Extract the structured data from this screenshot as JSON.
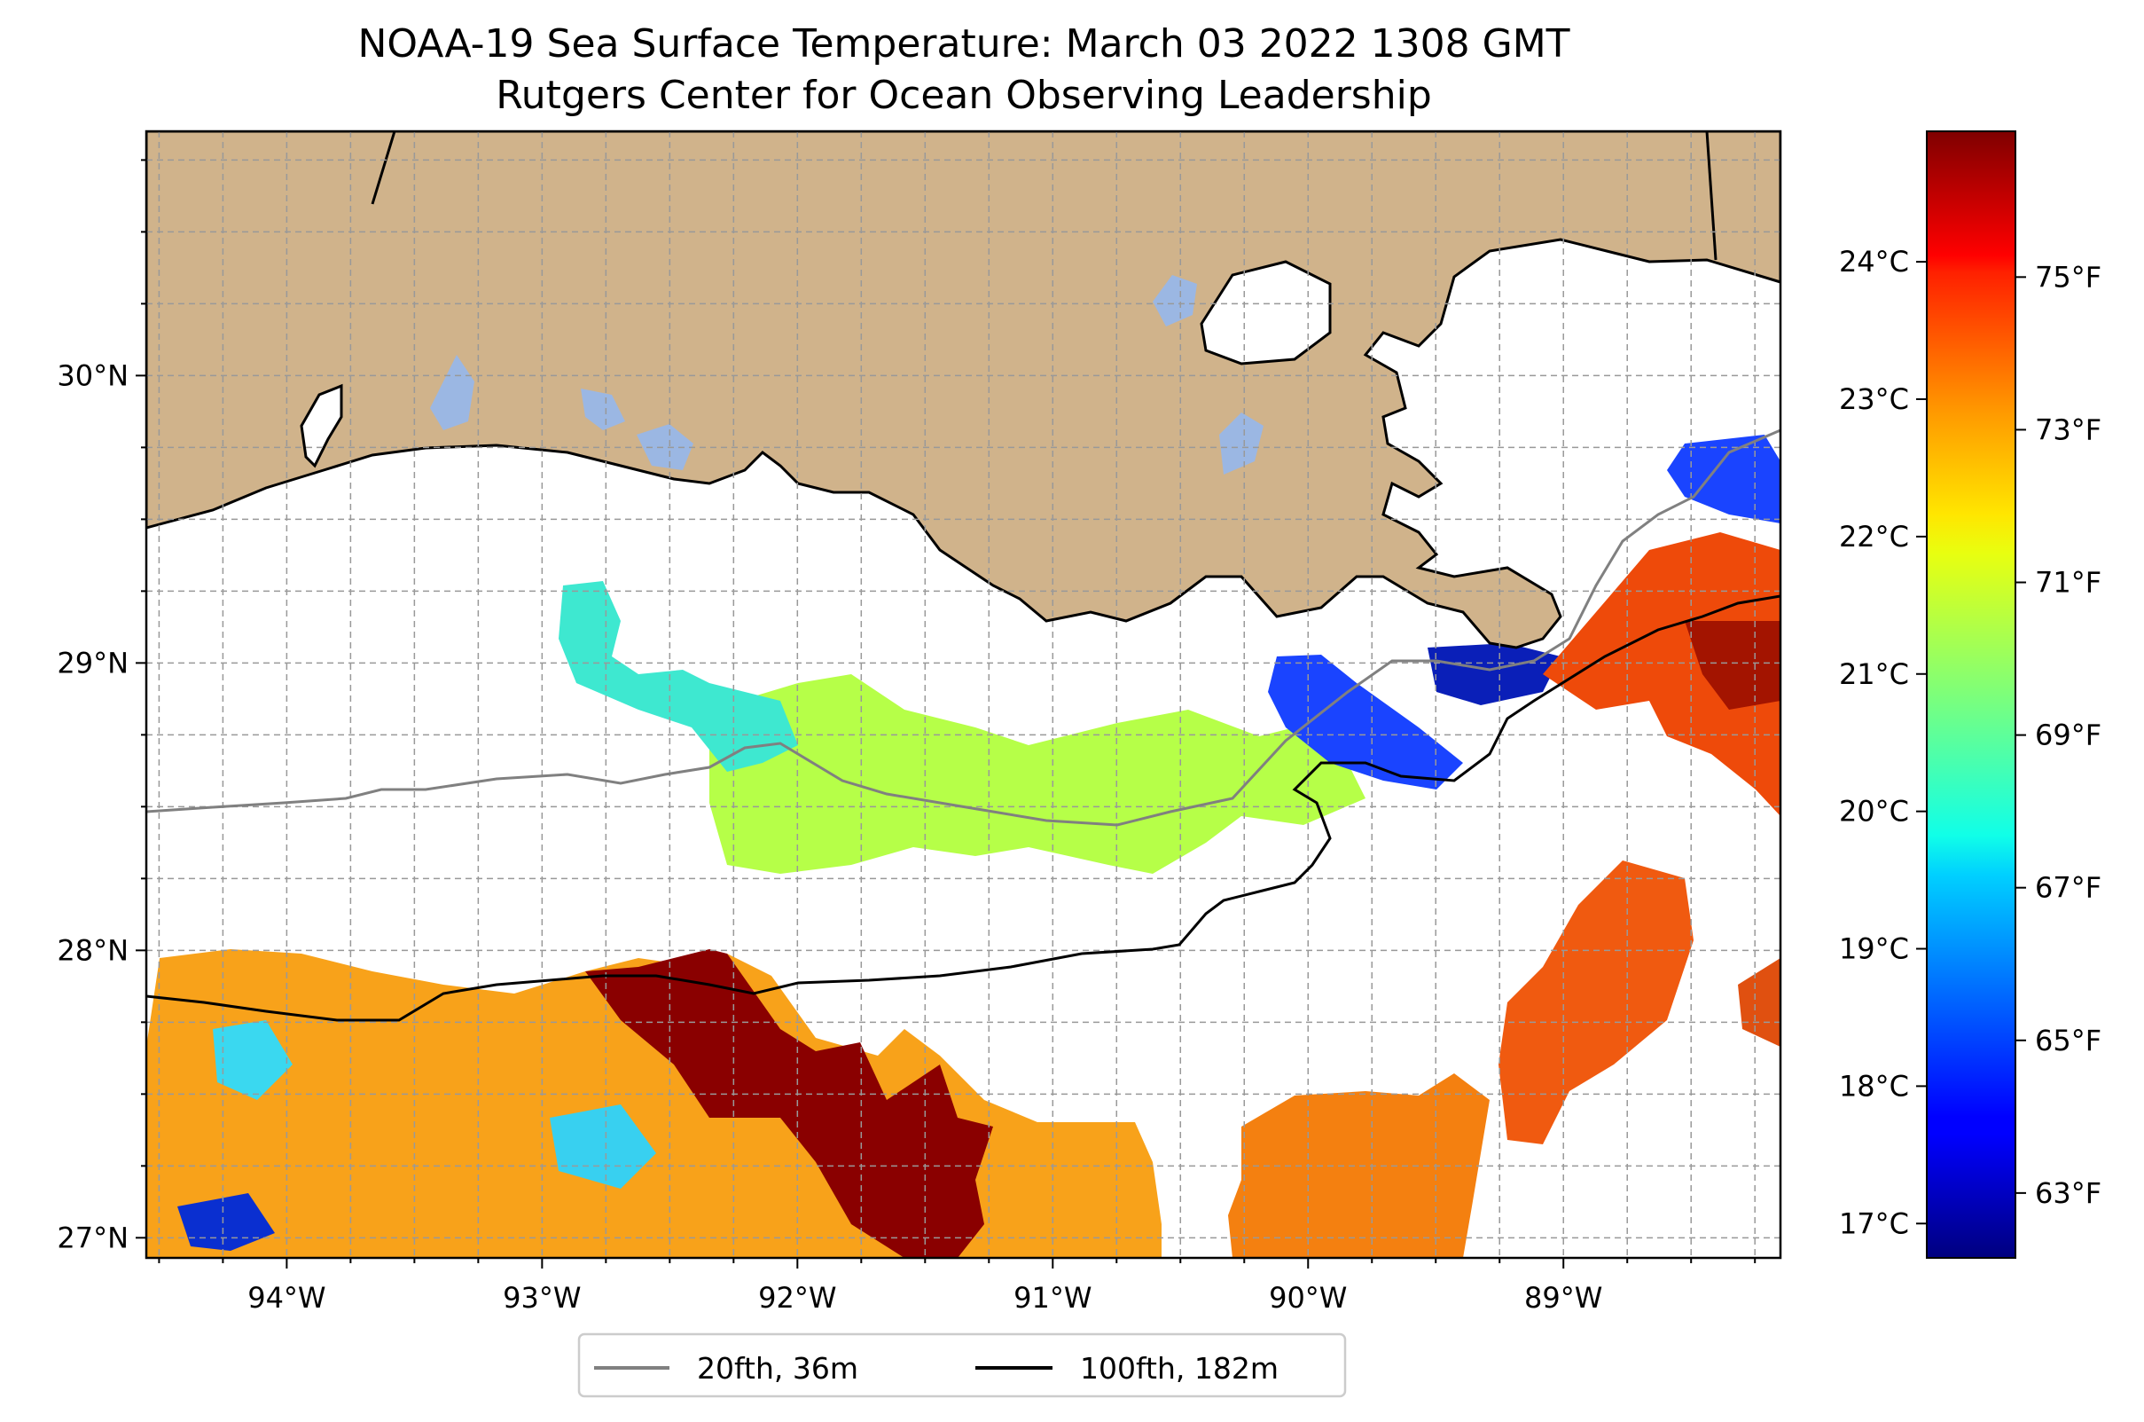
{
  "title": {
    "line1": "NOAA-19 Sea Surface Temperature: March 03 2022 1308 GMT",
    "line2": "Rutgers Center for Ocean Observing Leadership"
  },
  "map": {
    "lon_range": [
      -94.55,
      -88.15
    ],
    "lat_range": [
      26.93,
      30.85
    ],
    "longitude_labels": [
      "94°W",
      "93°W",
      "92°W",
      "91°W",
      "90°W",
      "89°W"
    ],
    "latitude_labels": [
      "30°N",
      "29°N",
      "28°N",
      "27°N"
    ],
    "gridlines": true,
    "land_color": "#d0b38b",
    "water_color": "#ffffff",
    "lake_color": "#9bb7e3"
  },
  "colorbar": {
    "colormap": "jet",
    "celsius_range": [
      16.75,
      24.95
    ],
    "celsius_labels": [
      "17°C",
      "18°C",
      "19°C",
      "20°C",
      "21°C",
      "22°C",
      "23°C",
      "24°C"
    ],
    "fahrenheit_labels": [
      "63°F",
      "65°F",
      "67°F",
      "69°F",
      "71°F",
      "73°F",
      "75°F"
    ]
  },
  "legend": {
    "placement": "below map",
    "items": [
      {
        "label": "20fth, 36m",
        "color": "#808080"
      },
      {
        "label": "100fth, 182m",
        "color": "#000000"
      }
    ]
  }
}
